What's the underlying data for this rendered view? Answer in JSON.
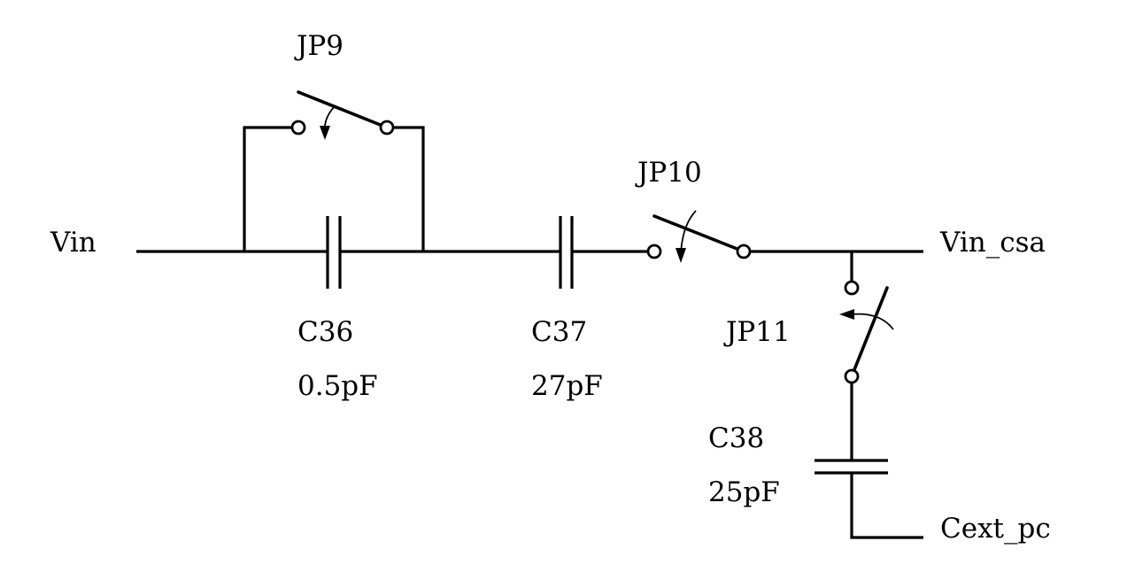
{
  "diagram": {
    "nets": {
      "input": "Vin",
      "output": "Vin_csa",
      "external": "Cext_pc"
    },
    "jumpers": [
      {
        "ref": "JP9"
      },
      {
        "ref": "JP10"
      },
      {
        "ref": "JP11"
      }
    ],
    "capacitors": [
      {
        "ref": "C36",
        "value": "0.5pF"
      },
      {
        "ref": "C37",
        "value": "27pF"
      },
      {
        "ref": "C38",
        "value": "25pF"
      }
    ],
    "colors": {
      "ink": "#000000",
      "background": "#ffffff"
    }
  }
}
